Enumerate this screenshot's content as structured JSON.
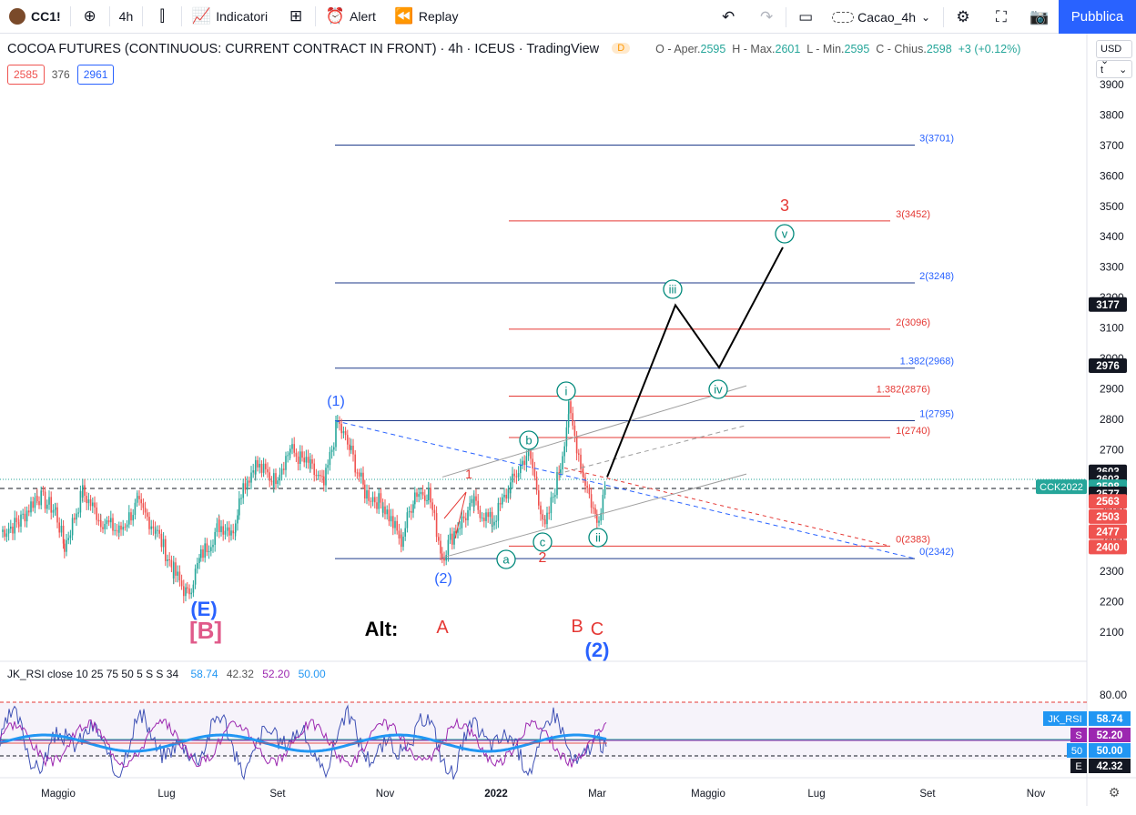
{
  "toolbar": {
    "symbol": "CC1!",
    "interval": "4h",
    "indicators_label": "Indicatori",
    "alert_label": "Alert",
    "replay_label": "Replay",
    "layout_name": "Cacao_4h",
    "publish_label": "Pubblica"
  },
  "legend": {
    "title": "COCOA FUTURES (CONTINUOUS: CURRENT CONTRACT IN FRONT) · 4h · ICEUS · TradingView",
    "badge": "D",
    "o_label": "O - Aper.",
    "o_value": "2595",
    "h_label": "H - Max.",
    "h_value": "2601",
    "l_label": "L - Min.",
    "l_value": "2595",
    "c_label": "C - Chius.",
    "c_value": "2598",
    "change": "+3 (+0.12%)",
    "bid": "2585",
    "spread": "376",
    "ask": "2961"
  },
  "scale": {
    "currency": "USD",
    "unit": "t",
    "ticks": [
      "3900",
      "3800",
      "3700",
      "3600",
      "3500",
      "3400",
      "3300",
      "3200",
      "3100",
      "3000",
      "2900",
      "2800",
      "2700",
      "2600",
      "2500",
      "2400",
      "2300",
      "2200",
      "2100"
    ],
    "labels": [
      {
        "text": "3177",
        "bg": "#131722",
        "fg": "#ffffff",
        "price": 3177
      },
      {
        "text": "2976",
        "bg": "#131722",
        "fg": "#ffffff",
        "price": 2976
      },
      {
        "text": "2603",
        "bg": "#131722",
        "fg": "#ffffff",
        "price": 2627
      },
      {
        "text": "2603",
        "bg": "#131722",
        "fg": "#ffffff",
        "price": 2603
      },
      {
        "text": "2598",
        "bg": "#26a69a",
        "fg": "#ffffff",
        "price": 2578
      },
      {
        "text": "2577",
        "bg": "#131722",
        "fg": "#ffffff",
        "price": 2555
      },
      {
        "text": "2563",
        "bg": "#ef5350",
        "fg": "#ffffff",
        "price": 2530
      },
      {
        "text": "2503",
        "bg": "#ef5350",
        "fg": "#ffffff",
        "price": 2480
      },
      {
        "text": "2477",
        "bg": "#ef5350",
        "fg": "#ffffff",
        "price": 2430
      },
      {
        "text": "2400",
        "bg": "#ef5350",
        "fg": "#ffffff",
        "price": 2380
      }
    ],
    "cck_label": "CCK2022"
  },
  "time_axis": [
    "Maggio",
    "Lug",
    "Set",
    "Nov",
    "2022",
    "Mar",
    "Maggio",
    "Lug",
    "Set",
    "Nov"
  ],
  "fib_blue": [
    {
      "label": "3(3701)",
      "price": 3701
    },
    {
      "label": "2(3248)",
      "price": 3248
    },
    {
      "label": "1.382(2968)",
      "price": 2968
    },
    {
      "label": "1(2795)",
      "price": 2795
    },
    {
      "label": "0(2342)",
      "price": 2342
    }
  ],
  "fib_red": [
    {
      "label": "3(3452)",
      "price": 3452
    },
    {
      "label": "2(3096)",
      "price": 3096
    },
    {
      "label": "1.382(2876)",
      "price": 2876
    },
    {
      "label": "1(2740)",
      "price": 2740
    },
    {
      "label": "0(2383)",
      "price": 2383
    }
  ],
  "waves": {
    "w1": "(1)",
    "w2": "(2)",
    "wE": "(E)",
    "wB": "[B]",
    "alt": "Alt:",
    "A": "A",
    "B": "B",
    "C": "C",
    "alt2": "(2)",
    "r1": "1",
    "r2": "2",
    "r3": "3",
    "i": "i",
    "ii": "ii",
    "iii": "iii",
    "iv": "iv",
    "v": "v",
    "a": "a",
    "b": "b",
    "c": "c"
  },
  "rsi": {
    "legend": "JK_RSI close 10 25 75 50 5 S S 34",
    "v1": "58.74",
    "v2": "42.32",
    "v3": "52.20",
    "v4": "50.00",
    "scale_top": "80.00",
    "tag_main": "JK_RSI",
    "tag_main_val": "58.74",
    "tag_s": "S",
    "tag_s_val": "52.20",
    "tag_50": "50",
    "tag_50_val": "50.00",
    "tag_e": "E",
    "tag_e_val": "42.32"
  },
  "colors": {
    "up": "#26a69a",
    "down": "#ef5350",
    "blue_fib": "#1e3a8a",
    "red_fib": "#e53935",
    "wave_blue": "#2962ff",
    "wave_red": "#e91e63",
    "teal": "#00897b"
  }
}
